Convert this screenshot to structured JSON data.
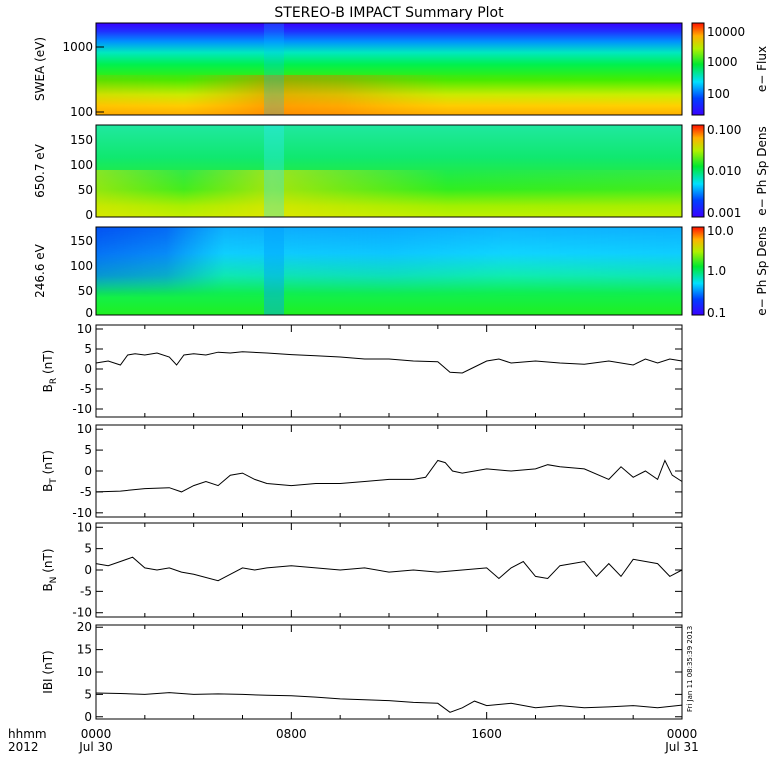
{
  "title": "STEREO-B IMPACT Summary Plot",
  "x_axis": {
    "corner_top": "hhmm",
    "corner_bottom": "2012",
    "ticks": [
      {
        "time": "0000",
        "date": "Jul 30",
        "hour": 0
      },
      {
        "time": "0800",
        "date": "",
        "hour": 8
      },
      {
        "time": "1600",
        "date": "",
        "hour": 16
      },
      {
        "time": "0000",
        "date": "Jul 31",
        "hour": 24
      }
    ]
  },
  "timestamp": "Fri Jan 11 08:35:39 2013",
  "chart_data": [
    {
      "type": "heatmap",
      "ylabel": "SWEA (eV)",
      "yscale": "log",
      "ylim": [
        90,
        2000
      ],
      "yticks": [
        "1000",
        "100"
      ],
      "colorbar": {
        "label": "e− Flux",
        "scale": "log",
        "range": [
          40,
          12000
        ],
        "ticks": [
          "10000",
          "1000",
          "100"
        ],
        "palette": "rainbow"
      }
    },
    {
      "type": "heatmap",
      "ylabel": "650.7 eV",
      "ylim": [
        0,
        180
      ],
      "yticks": [
        "150",
        "100",
        "50",
        "0"
      ],
      "colorbar": {
        "label": "e− Ph Sp Dens",
        "scale": "log",
        "range": [
          0.001,
          0.1
        ],
        "ticks": [
          "0.100",
          "0.010",
          "0.001"
        ],
        "palette": "rainbow"
      }
    },
    {
      "type": "heatmap",
      "ylabel": "246.6 eV",
      "ylim": [
        0,
        180
      ],
      "yticks": [
        "150",
        "100",
        "50",
        "0"
      ],
      "colorbar": {
        "label": "e− Ph Sp Dens",
        "scale": "log",
        "range": [
          0.1,
          10
        ],
        "ticks": [
          "10.0",
          "1.0",
          "0.1"
        ],
        "palette": "rainbow"
      }
    },
    {
      "type": "line",
      "ylabel": "BR (nT)",
      "ylabel_main": "B",
      "ylabel_sub": "R",
      "ylabel_unit": "(nT)",
      "ylim": [
        -12,
        11
      ],
      "yticks": [
        "10",
        "5",
        "0",
        "-5",
        "-10"
      ],
      "x_hours": [
        0,
        0.5,
        1,
        1.3,
        1.6,
        2,
        2.5,
        3,
        3.3,
        3.6,
        4,
        4.5,
        5,
        5.5,
        6,
        7,
        8,
        9,
        10,
        11,
        12,
        13,
        14,
        14.5,
        15,
        15.5,
        16,
        16.5,
        17,
        18,
        19,
        20,
        21,
        22,
        22.5,
        23,
        23.5,
        24
      ],
      "values": [
        1.5,
        2.0,
        1.0,
        3.5,
        3.8,
        3.5,
        4.0,
        3.0,
        1.0,
        3.5,
        3.8,
        3.5,
        4.2,
        4.0,
        4.3,
        4.0,
        3.6,
        3.3,
        3.0,
        2.5,
        2.5,
        2.0,
        1.8,
        -0.8,
        -1.0,
        0.5,
        2.0,
        2.5,
        1.5,
        2.0,
        1.5,
        1.2,
        2.0,
        1.0,
        2.5,
        1.5,
        2.5,
        2.0
      ]
    },
    {
      "type": "line",
      "ylabel": "BT (nT)",
      "ylabel_main": "B",
      "ylabel_sub": "T",
      "ylabel_unit": "(nT)",
      "ylim": [
        -11,
        11
      ],
      "yticks": [
        "10",
        "5",
        "0",
        "-5",
        "-10"
      ],
      "x_hours": [
        0,
        1,
        2,
        3,
        3.5,
        4,
        4.5,
        5,
        5.5,
        6,
        6.5,
        7,
        8,
        9,
        10,
        11,
        12,
        13,
        13.5,
        14,
        14.3,
        14.6,
        15,
        16,
        17,
        18,
        18.5,
        19,
        20,
        21,
        21.5,
        22,
        22.5,
        23,
        23.3,
        23.6,
        24
      ],
      "values": [
        -5.0,
        -4.8,
        -4.2,
        -4.0,
        -5.0,
        -3.5,
        -2.5,
        -3.5,
        -1.0,
        -0.5,
        -2.0,
        -3.0,
        -3.5,
        -3.0,
        -3.0,
        -2.5,
        -2.0,
        -2.0,
        -1.5,
        2.5,
        2.0,
        0.0,
        -0.5,
        0.5,
        0.0,
        0.5,
        1.5,
        1.0,
        0.5,
        -2.0,
        1.0,
        -1.5,
        0.0,
        -2.0,
        2.5,
        -1.0,
        -2.5
      ]
    },
    {
      "type": "line",
      "ylabel": "BN (nT)",
      "ylabel_main": "B",
      "ylabel_sub": "N",
      "ylabel_unit": "(nT)",
      "ylim": [
        -11,
        11
      ],
      "yticks": [
        "10",
        "5",
        "0",
        "-5",
        "-10"
      ],
      "x_hours": [
        0,
        0.5,
        1,
        1.5,
        2,
        2.5,
        3,
        3.5,
        4,
        5,
        5.5,
        6,
        6.5,
        7,
        8,
        9,
        10,
        11,
        12,
        13,
        14,
        15,
        16,
        16.5,
        17,
        17.5,
        18,
        18.5,
        19,
        20,
        20.5,
        21,
        21.5,
        22,
        23,
        23.5,
        24
      ],
      "values": [
        1.5,
        1.0,
        2.0,
        3.0,
        0.5,
        0.0,
        0.5,
        -0.5,
        -1.0,
        -2.5,
        -1.0,
        0.5,
        0.0,
        0.5,
        1.0,
        0.5,
        0.0,
        0.5,
        -0.5,
        0.0,
        -0.5,
        0.0,
        0.5,
        -2.0,
        0.5,
        2.0,
        -1.5,
        -2.0,
        1.0,
        2.0,
        -1.5,
        1.5,
        -1.5,
        2.5,
        1.5,
        -1.5,
        0.0
      ]
    },
    {
      "type": "line",
      "ylabel": "|B| (nT)",
      "ylabel_main": "IBI",
      "ylabel_sub": "",
      "ylabel_unit": "(nT)",
      "ylim": [
        -0.5,
        20.5
      ],
      "yticks": [
        "20",
        "15",
        "10",
        "5",
        "0"
      ],
      "x_hours": [
        0,
        1,
        2,
        3,
        4,
        5,
        6,
        7,
        8,
        9,
        10,
        11,
        12,
        13,
        14,
        14.5,
        15,
        15.5,
        16,
        17,
        18,
        19,
        20,
        21,
        22,
        23,
        24
      ],
      "values": [
        5.3,
        5.2,
        5.0,
        5.4,
        5.0,
        5.1,
        5.0,
        4.8,
        4.7,
        4.4,
        4.0,
        3.8,
        3.6,
        3.2,
        3.0,
        1.0,
        2.0,
        3.5,
        2.5,
        3.0,
        2.0,
        2.5,
        2.0,
        2.2,
        2.5,
        2.0,
        2.6
      ]
    }
  ]
}
